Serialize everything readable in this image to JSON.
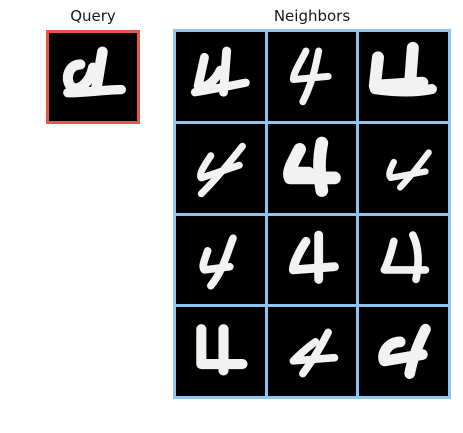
{
  "query": {
    "title": "Query",
    "frame_color": "#e8534a"
  },
  "neighbors": {
    "title": "Neighbors",
    "frame_color": "#8fc4ee",
    "rows": 4,
    "columns": 3
  }
}
